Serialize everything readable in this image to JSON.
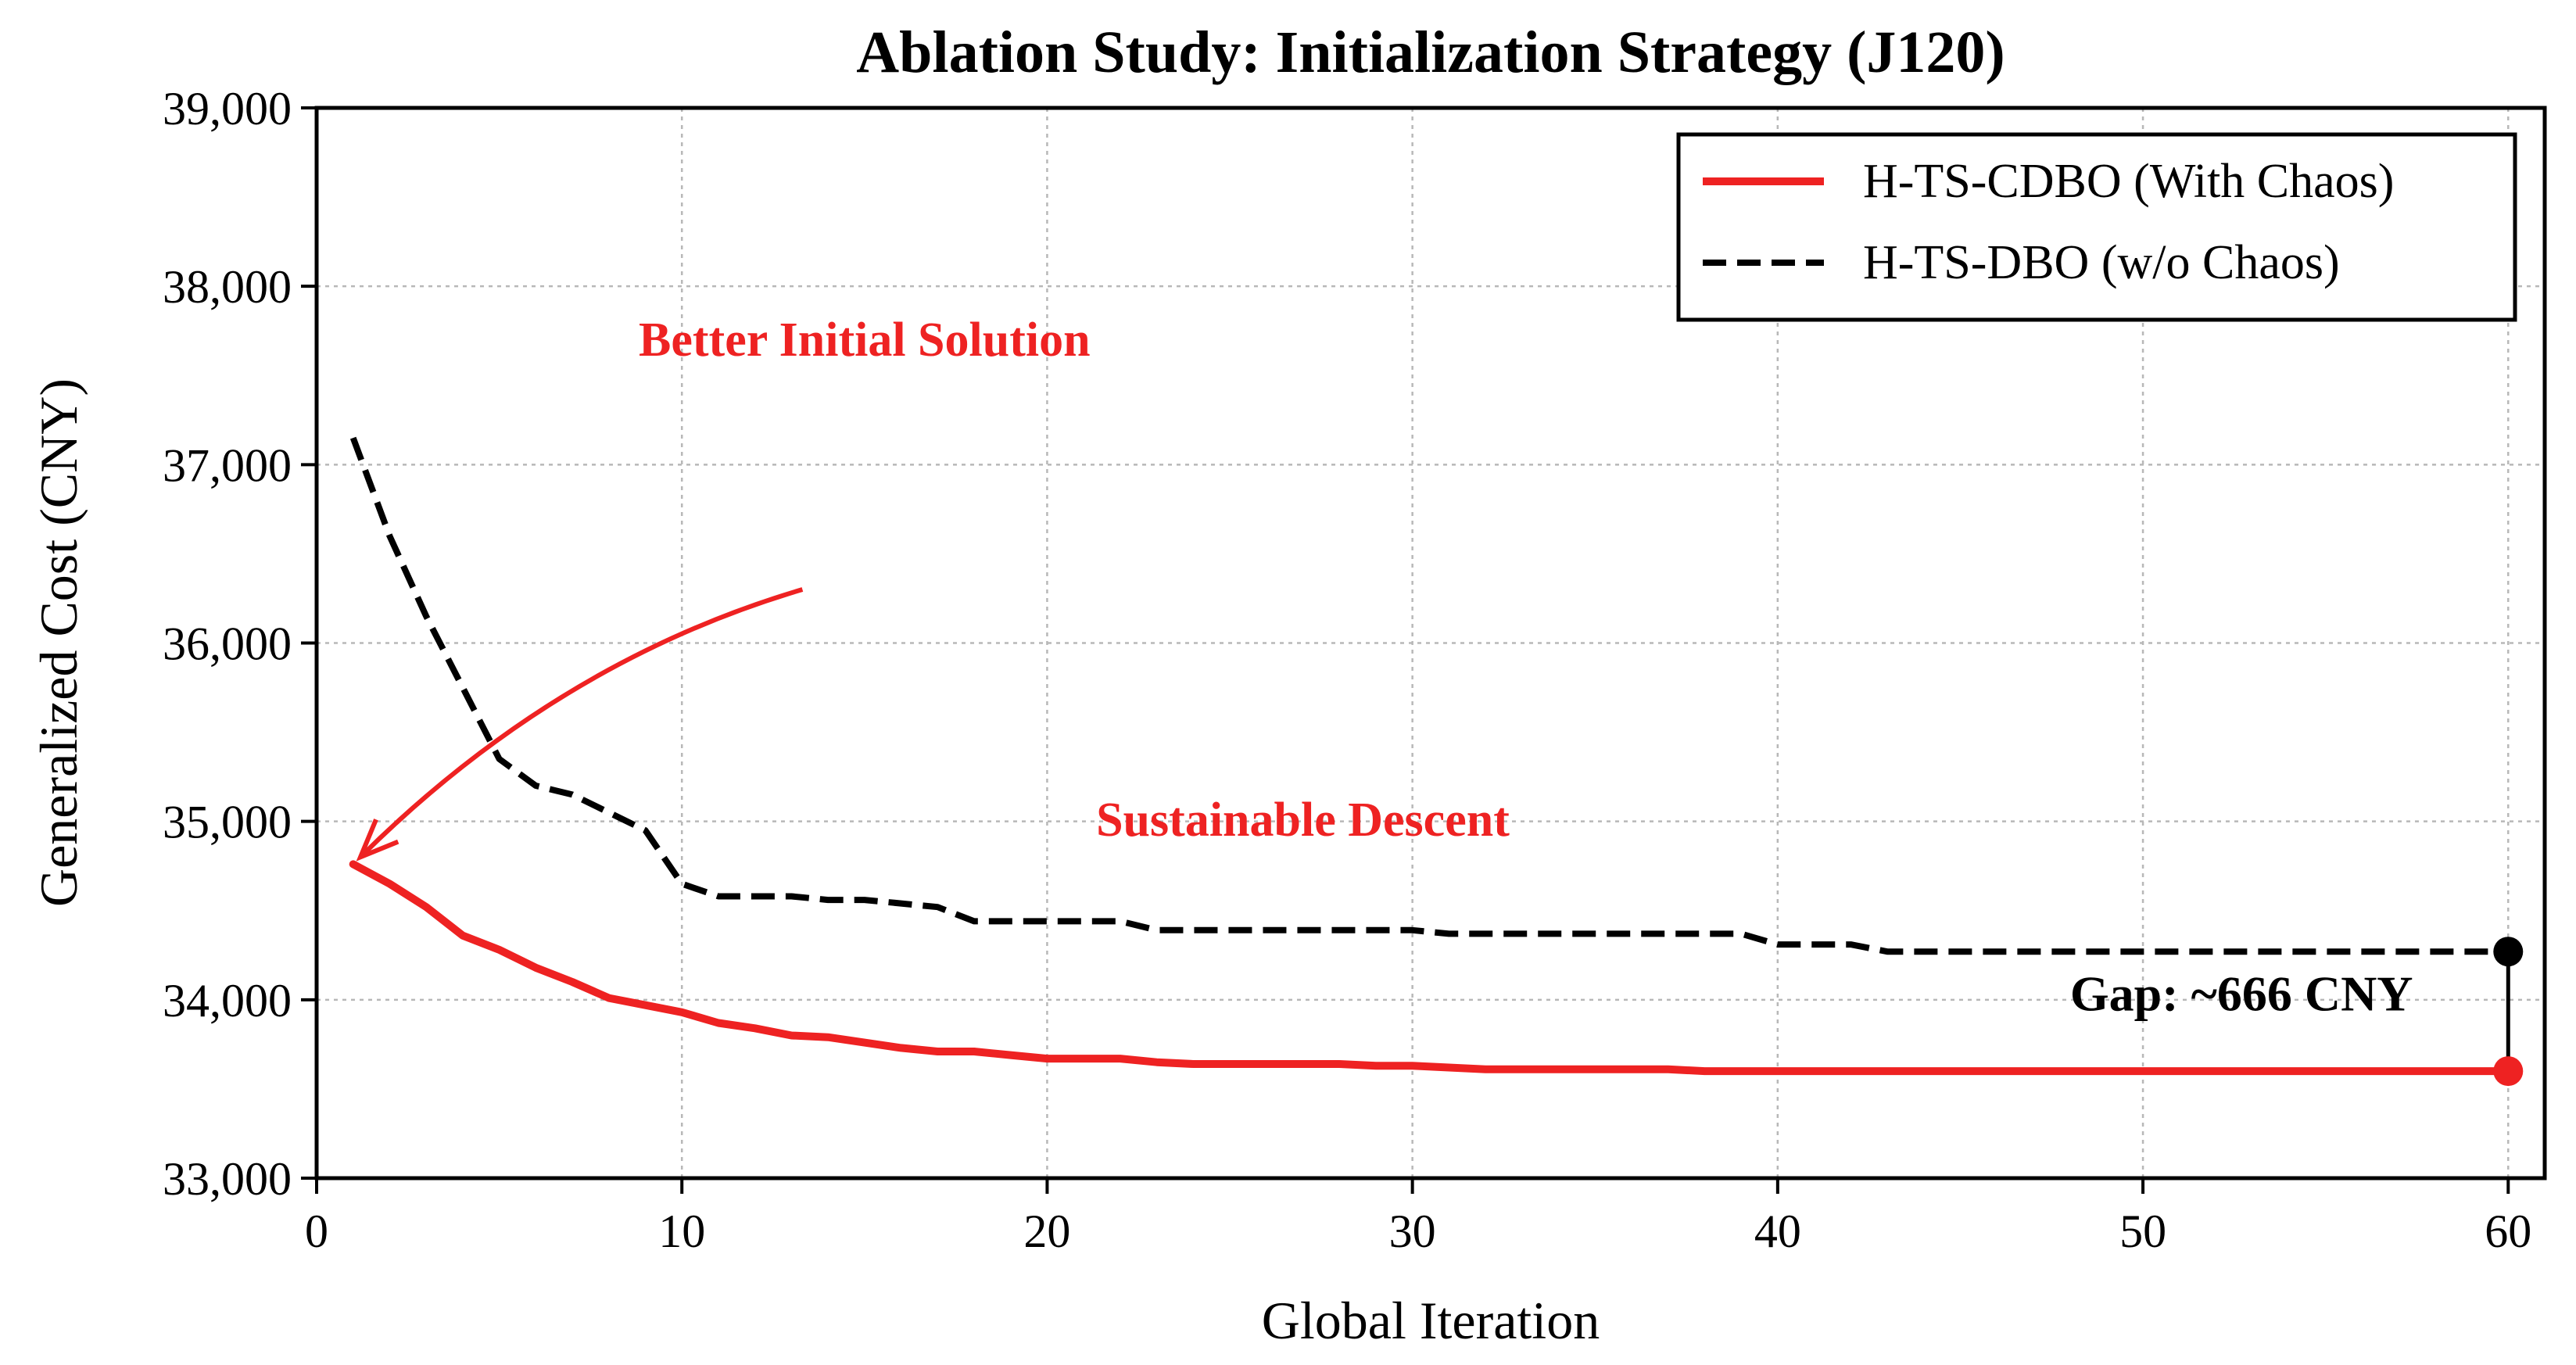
{
  "chart_data": {
    "type": "line",
    "title": "Ablation Study: Initialization Strategy (J120)",
    "xlabel": "Global Iteration",
    "ylabel": "Generalized Cost (CNY)",
    "xlim": [
      0,
      61
    ],
    "ylim": [
      33000,
      39000
    ],
    "xticks": [
      0,
      10,
      20,
      30,
      40,
      50,
      60
    ],
    "yticks": [
      33000,
      34000,
      35000,
      36000,
      37000,
      38000,
      39000
    ],
    "ytick_labels": [
      "33,000",
      "34,000",
      "35,000",
      "36,000",
      "37,000",
      "38,000",
      "39,000"
    ],
    "grid": true,
    "legend_position": "top-right",
    "series": [
      {
        "name": "H-TS-CDBO (With Chaos)",
        "color": "#ee2222",
        "style": "solid",
        "x": [
          1,
          2,
          3,
          4,
          5,
          6,
          7,
          8,
          9,
          10,
          11,
          12,
          13,
          14,
          15,
          16,
          17,
          18,
          19,
          20,
          21,
          22,
          23,
          24,
          25,
          26,
          27,
          28,
          29,
          30,
          31,
          32,
          33,
          34,
          35,
          36,
          37,
          38,
          39,
          40,
          41,
          42,
          43,
          44,
          45,
          46,
          47,
          48,
          49,
          50,
          51,
          52,
          53,
          54,
          55,
          56,
          57,
          58,
          59,
          60
        ],
        "values": [
          34760,
          34650,
          34520,
          34360,
          34280,
          34180,
          34100,
          34010,
          33970,
          33930,
          33870,
          33840,
          33800,
          33790,
          33760,
          33730,
          33710,
          33710,
          33690,
          33670,
          33670,
          33670,
          33650,
          33640,
          33640,
          33640,
          33640,
          33640,
          33630,
          33630,
          33620,
          33610,
          33610,
          33610,
          33610,
          33610,
          33610,
          33600,
          33600,
          33600,
          33600,
          33600,
          33600,
          33600,
          33600,
          33600,
          33600,
          33600,
          33600,
          33600,
          33600,
          33600,
          33600,
          33600,
          33600,
          33600,
          33600,
          33600,
          33600,
          33600
        ]
      },
      {
        "name": "H-TS-DBO (w/o Chaos)",
        "color": "#000000",
        "style": "dashed",
        "x": [
          1,
          2,
          3,
          4,
          5,
          6,
          7,
          8,
          9,
          10,
          11,
          12,
          13,
          14,
          15,
          16,
          17,
          18,
          19,
          20,
          21,
          22,
          23,
          24,
          25,
          26,
          27,
          28,
          29,
          30,
          31,
          32,
          33,
          34,
          35,
          36,
          37,
          38,
          39,
          40,
          41,
          42,
          43,
          44,
          45,
          46,
          47,
          48,
          49,
          50,
          51,
          52,
          53,
          54,
          55,
          56,
          57,
          58,
          59,
          60
        ],
        "values": [
          37150,
          36600,
          36150,
          35750,
          35350,
          35200,
          35150,
          35050,
          34950,
          34650,
          34580,
          34580,
          34580,
          34560,
          34560,
          34540,
          34520,
          34440,
          34440,
          34440,
          34440,
          34440,
          34390,
          34390,
          34390,
          34390,
          34390,
          34390,
          34390,
          34390,
          34370,
          34370,
          34370,
          34370,
          34370,
          34370,
          34370,
          34370,
          34370,
          34310,
          34310,
          34310,
          34270,
          34270,
          34270,
          34270,
          34270,
          34270,
          34270,
          34270,
          34270,
          34270,
          34270,
          34270,
          34270,
          34270,
          34270,
          34270,
          34270,
          34270
        ]
      }
    ],
    "endpoint_markers": [
      {
        "series": "H-TS-DBO (w/o Chaos)",
        "x": 60,
        "y": 34270,
        "color": "#000000"
      },
      {
        "series": "H-TS-CDBO (With Chaos)",
        "x": 60,
        "y": 33600,
        "color": "#ee2222"
      }
    ],
    "annotations": [
      {
        "id": "better-initial",
        "text": "Better Initial Solution",
        "x": 15,
        "y": 37610,
        "color": "#ee2222",
        "arrow_from": [
          13.3,
          36300
        ],
        "arrow_to": [
          1.2,
          34800
        ]
      },
      {
        "id": "sustainable-descent",
        "text": "Sustainable Descent",
        "x": 27,
        "y": 34920,
        "color": "#ee2222"
      },
      {
        "id": "gap",
        "text": "Gap: ~666 CNY",
        "x": 52.7,
        "y": 33940,
        "color": "#000000"
      }
    ]
  }
}
